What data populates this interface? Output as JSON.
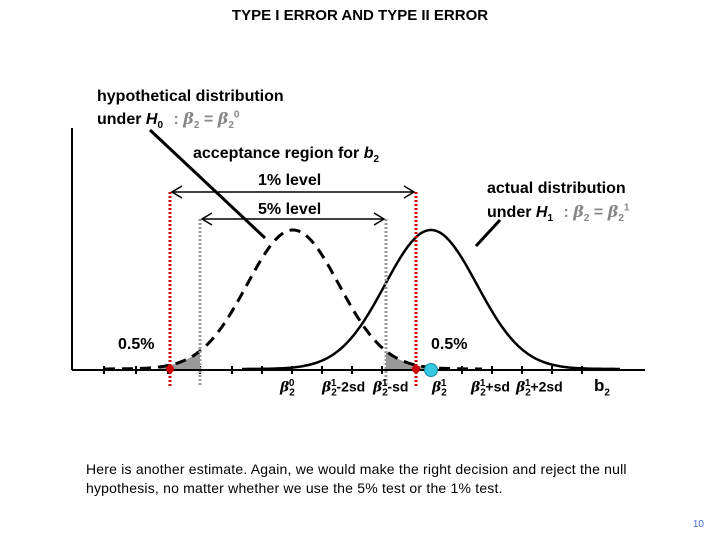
{
  "title": "TYPE I ERROR AND TYPE II ERROR",
  "h0_label": {
    "line1": "hypothetical distribution",
    "line2_prefix": "under",
    "hypothesis": "H",
    "sub": "0",
    "eq": "b2 = b2 0"
  },
  "acceptance_label": {
    "text": "acceptance region for",
    "var": "b",
    "sub": "2"
  },
  "level_1pct": "1% level",
  "level_5pct": "5% level",
  "h1_label": {
    "line1": "actual distribution",
    "line2_prefix": "under",
    "hypothesis": "H",
    "sub": "1",
    "eq": "b2 = b2 1"
  },
  "tail_left": "0.5%",
  "tail_right": "0.5%",
  "ticks": [
    "b20",
    "b21-2sd",
    "b21-sd",
    "b21",
    "b21+sd",
    "b21+2sd"
  ],
  "axis_label": {
    "var": "b",
    "sub": "2"
  },
  "paragraph": "Here is another estimate. Again, we would make the right decision and reject the null hypothesis, no matter whether we use the 5% test or the 1% test.",
  "page_number": "10",
  "colors": {
    "critical_1pct": "#cc0000",
    "critical_5pct": "#999999",
    "shaded": "#999999",
    "estimate_marker": "#33c9e0"
  },
  "distributions": {
    "h0": {
      "mean": "b2 0",
      "style": "dashed"
    },
    "h1": {
      "mean": "b2 1",
      "style": "solid"
    }
  }
}
